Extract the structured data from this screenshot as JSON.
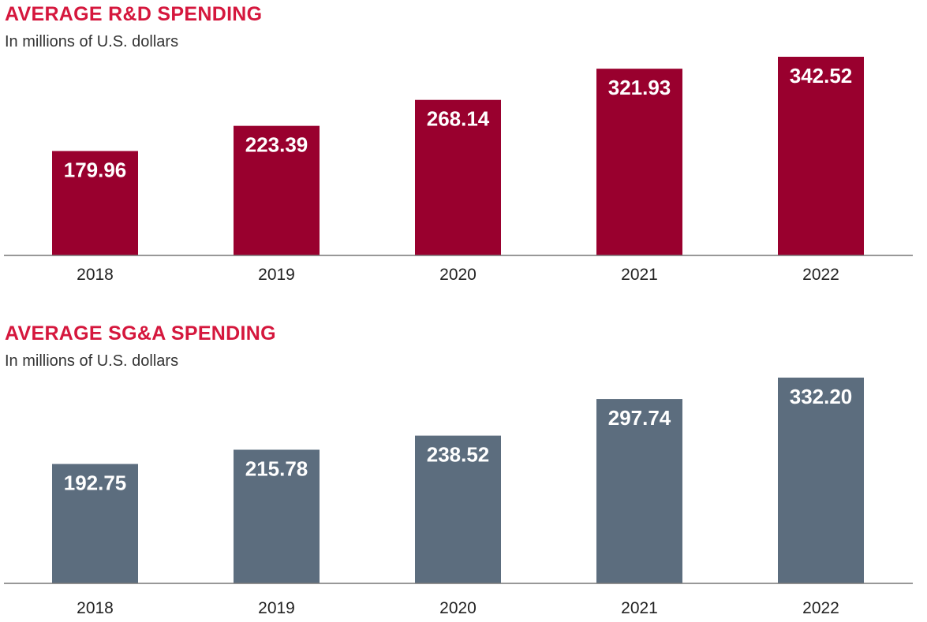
{
  "chart_data": [
    {
      "type": "bar",
      "title": "AVERAGE R&D SPENDING",
      "subtitle": "In millions of U.S. dollars",
      "categories": [
        "2018",
        "2019",
        "2020",
        "2021",
        "2022"
      ],
      "values": [
        179.96,
        223.39,
        268.14,
        321.93,
        342.52
      ],
      "value_labels": [
        "179.96",
        "223.39",
        "268.14",
        "321.93",
        "342.52"
      ],
      "color": "#99002e",
      "ylim": [
        0,
        342.52
      ],
      "xlabel": "",
      "ylabel": "",
      "grid": false,
      "legend": "none"
    },
    {
      "type": "bar",
      "title": "AVERAGE SG&A SPENDING",
      "subtitle": "In millions of U.S. dollars",
      "categories": [
        "2018",
        "2019",
        "2020",
        "2021",
        "2022"
      ],
      "values": [
        192.75,
        215.78,
        238.52,
        297.74,
        332.2
      ],
      "value_labels": [
        "192.75",
        "215.78",
        "238.52",
        "297.74",
        "332.20"
      ],
      "color": "#5c6d7e",
      "ylim": [
        0,
        332.2
      ],
      "xlabel": "",
      "ylabel": "",
      "grid": false,
      "legend": "none"
    }
  ]
}
